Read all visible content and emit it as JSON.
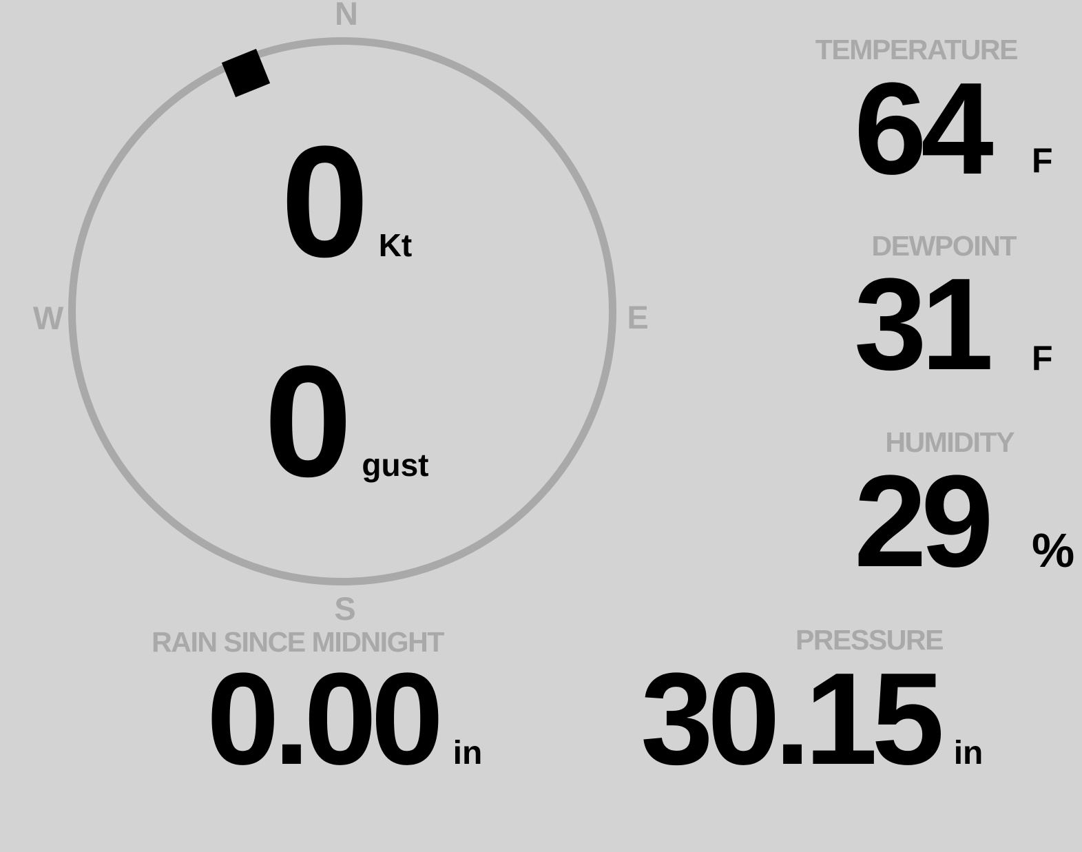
{
  "colors": {
    "background": "#d3d3d3",
    "muted_gray": "#a9a9a9",
    "value_black": "#000000"
  },
  "wind": {
    "direction_deg": 338,
    "compass": {
      "n": "N",
      "e": "E",
      "s": "S",
      "w": "W"
    },
    "speed": {
      "value": "0",
      "unit": "Kt"
    },
    "gust": {
      "value": "0",
      "unit": "gust"
    }
  },
  "metrics": [
    {
      "id": "temperature",
      "label": "TEMPERATURE",
      "value": "64",
      "unit": "F"
    },
    {
      "id": "dewpoint",
      "label": "DEWPOINT",
      "value": "31",
      "unit": "F"
    },
    {
      "id": "humidity",
      "label": "HUMIDITY",
      "value": "29",
      "unit": "%"
    },
    {
      "id": "rain",
      "label": "RAIN SINCE MIDNIGHT",
      "value": "0.00",
      "unit": "in"
    },
    {
      "id": "pressure",
      "label": "PRESSURE",
      "value": "30.15",
      "unit": "in"
    }
  ]
}
